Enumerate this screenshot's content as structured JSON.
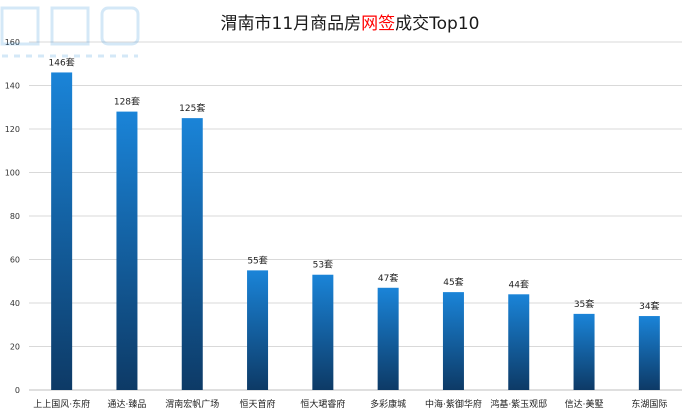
{
  "chart_data": {
    "type": "bar",
    "title_parts": [
      "渭南市11月商品房",
      "网签",
      "成交Top10"
    ],
    "categories": [
      "上上国风·东府",
      "通达·臻品",
      "渭南宏帆广场",
      "恒天首府",
      "恒大珺睿府",
      "多彩康城",
      "中海·紫御华府",
      "鸿基·紫玉观邸",
      "信达·美墅",
      "东湖国际"
    ],
    "values": [
      146,
      128,
      125,
      55,
      53,
      47,
      45,
      44,
      35,
      34
    ],
    "value_labels": [
      "146套",
      "128套",
      "125套",
      "55套",
      "53套",
      "47套",
      "45套",
      "44套",
      "35套",
      "34套"
    ],
    "ylim": [
      0,
      160
    ],
    "yticks": [
      0,
      20,
      40,
      60,
      80,
      100,
      120,
      140,
      160
    ],
    "grid": true,
    "colors": {
      "bar_top": "#1a84d8",
      "bar_bottom": "#0d3a66",
      "grid": "#d9d9d9",
      "axis": "#bfbfbf",
      "title_highlight": "#ff0000"
    }
  }
}
